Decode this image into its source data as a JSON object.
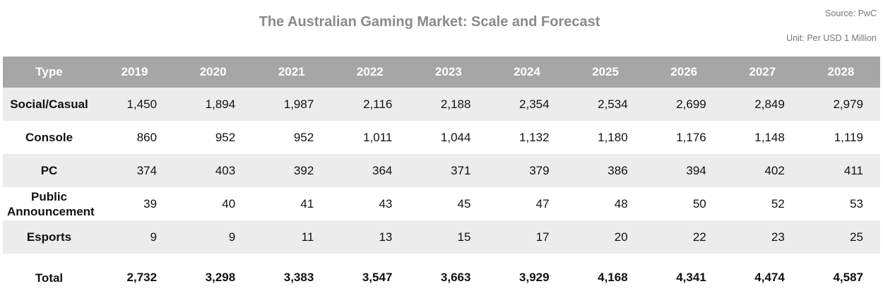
{
  "title": "The Australian Gaming Market: Scale and Forecast",
  "source": "Source: PwC",
  "unit": "Unit: Per USD 1 Million",
  "colors": {
    "header_bg": "#a6a6a6",
    "stripe_bg": "#ececec",
    "title": "#8a8a8a"
  },
  "chart_data": {
    "type": "table",
    "columns": [
      "Type",
      "2019",
      "2020",
      "2021",
      "2022",
      "2023",
      "2024",
      "2025",
      "2026",
      "2027",
      "2028"
    ],
    "rows": [
      [
        "Social/Casual",
        "1,450",
        "1,894",
        "1,987",
        "2,116",
        "2,188",
        "2,354",
        "2,534",
        "2,699",
        "2,849",
        "2,979"
      ],
      [
        "Console",
        "860",
        "952",
        "952",
        "1,011",
        "1,044",
        "1,132",
        "1,180",
        "1,176",
        "1,148",
        "1,119"
      ],
      [
        "PC",
        "374",
        "403",
        "392",
        "364",
        "371",
        "379",
        "386",
        "394",
        "402",
        "411"
      ],
      [
        "Public Announcement",
        "39",
        "40",
        "41",
        "43",
        "45",
        "47",
        "48",
        "50",
        "52",
        "53"
      ],
      [
        "Esports",
        "9",
        "9",
        "11",
        "13",
        "15",
        "17",
        "20",
        "22",
        "23",
        "25"
      ],
      [
        "Total",
        "2,732",
        "3,298",
        "3,383",
        "3,547",
        "3,663",
        "3,929",
        "4,168",
        "4,341",
        "4,474",
        "4,587"
      ]
    ]
  }
}
